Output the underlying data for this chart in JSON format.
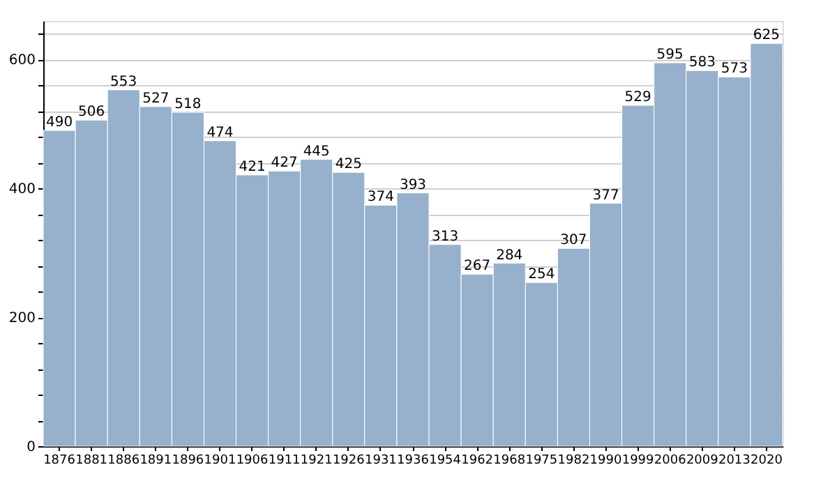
{
  "chart_data": {
    "type": "bar",
    "categories": [
      "1876",
      "1881",
      "1886",
      "1891",
      "1896",
      "1901",
      "1906",
      "1911",
      "1921",
      "1926",
      "1931",
      "1936",
      "1954",
      "1962",
      "1968",
      "1975",
      "1982",
      "1990",
      "1999",
      "2006",
      "2009",
      "2013",
      "2020"
    ],
    "values": [
      490,
      506,
      553,
      527,
      518,
      474,
      421,
      427,
      445,
      425,
      374,
      393,
      313,
      267,
      284,
      254,
      307,
      377,
      529,
      595,
      583,
      573,
      625
    ],
    "color": "#97b0cc",
    "ylim": [
      0,
      660
    ],
    "yticks": [
      0,
      {
        "value": 40,
        "label": null
      },
      {
        "value": 80,
        "label": null
      },
      {
        "value": 120,
        "label": null
      },
      {
        "value": 160,
        "label": null
      },
      200,
      {
        "value": 240,
        "label": null
      },
      {
        "value": 280,
        "label": null
      },
      {
        "value": 320,
        "label": null
      },
      {
        "value": 360,
        "label": null
      },
      400,
      {
        "value": 440,
        "label": null
      },
      {
        "value": 480,
        "label": null
      },
      {
        "value": 520,
        "label": null
      },
      {
        "value": 560,
        "label": null
      },
      600,
      {
        "value": 640,
        "label": null
      }
    ],
    "grid": "y",
    "data_labels": true
  }
}
